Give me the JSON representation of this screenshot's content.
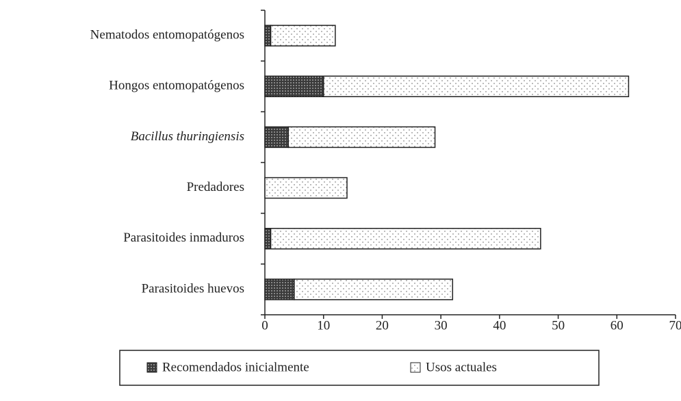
{
  "chart_data": {
    "type": "stacked_barh",
    "categories": [
      "Nematodos entomopatógenos",
      "Hongos entomopatógenos",
      "Bacillus thuringiensis",
      "Predadores",
      "Parasitoides inmaduros",
      "Parasitoides huevos"
    ],
    "series": [
      {
        "name": "Recomendados inicialmente",
        "color": "#3a3a3a",
        "values": [
          1,
          10,
          4,
          0,
          1,
          5
        ]
      },
      {
        "name": "Usos actuales",
        "color": "#ffffff",
        "values": [
          11,
          52,
          25,
          14,
          46,
          27
        ]
      }
    ],
    "xlim": [
      0,
      70
    ],
    "xticks": [
      0,
      10,
      20,
      30,
      40,
      50,
      60,
      70
    ]
  }
}
